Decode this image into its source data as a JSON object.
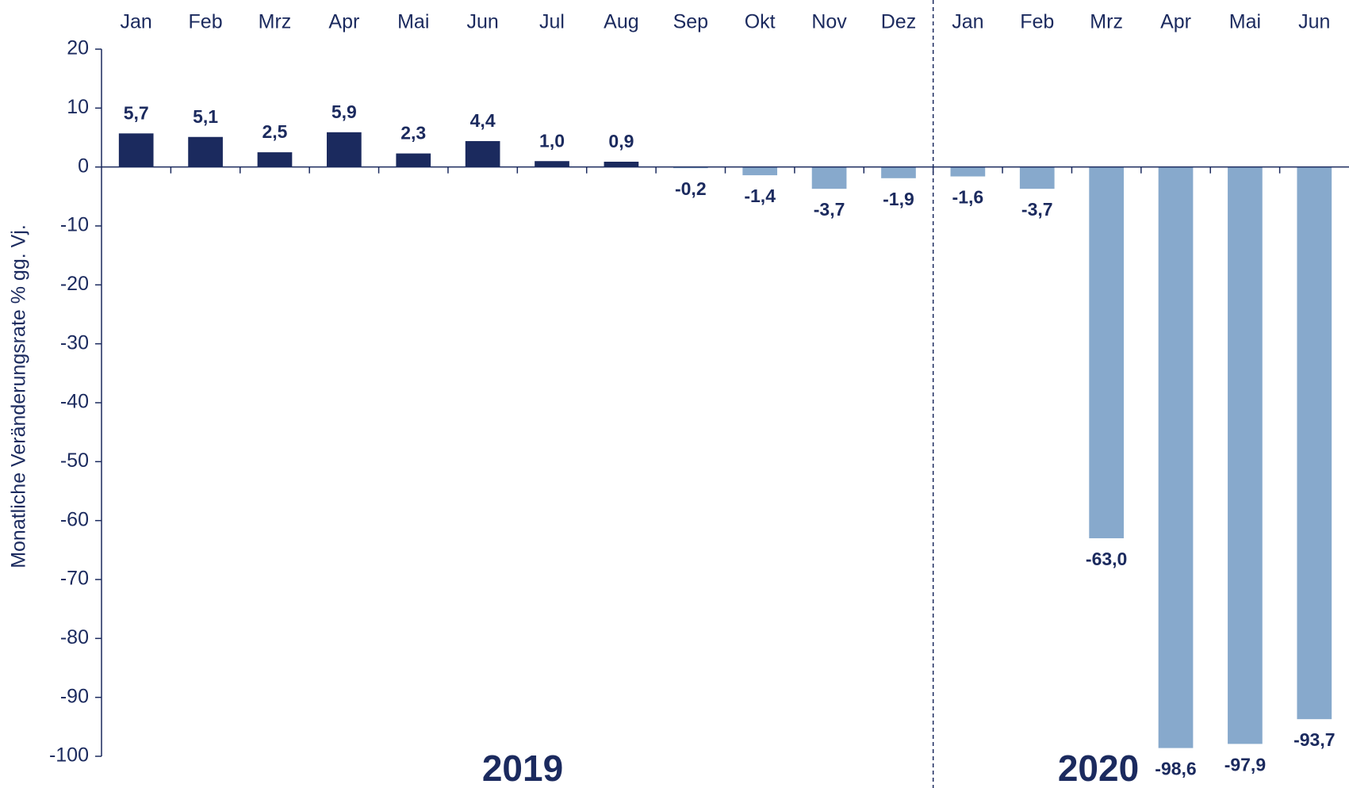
{
  "chart_data": {
    "type": "bar",
    "y_axis_label": "Monatliche Veränderungsrate % gg. Vj.",
    "categories": [
      "Jan",
      "Feb",
      "Mrz",
      "Apr",
      "Mai",
      "Jun",
      "Jul",
      "Aug",
      "Sep",
      "Okt",
      "Nov",
      "Dez",
      "Jan",
      "Feb",
      "Mrz",
      "Apr",
      "Mai",
      "Jun"
    ],
    "values": [
      5.7,
      5.1,
      2.5,
      5.9,
      2.3,
      4.4,
      1.0,
      0.9,
      -0.2,
      -1.4,
      -3.7,
      -1.9,
      -1.6,
      -3.7,
      -63.0,
      -98.6,
      -97.9,
      -93.7
    ],
    "value_labels": [
      "5,7",
      "5,1",
      "2,5",
      "5,9",
      "2,3",
      "4,4",
      "1,0",
      "0,9",
      "-0,2",
      "-1,4",
      "-3,7",
      "-1,9",
      "-1,6",
      "-3,7",
      "-63,0",
      "-98,6",
      "-97,9",
      "-93,7"
    ],
    "groups": [
      "2019",
      "2020"
    ],
    "color_positive": "#1b2a5e",
    "color_negative": "#87a9cc",
    "ylim": [
      -100,
      20
    ],
    "yticks": [
      20,
      10,
      0,
      -10,
      -20,
      -30,
      -40,
      -50,
      -60,
      -70,
      -80,
      -90,
      -100
    ]
  }
}
